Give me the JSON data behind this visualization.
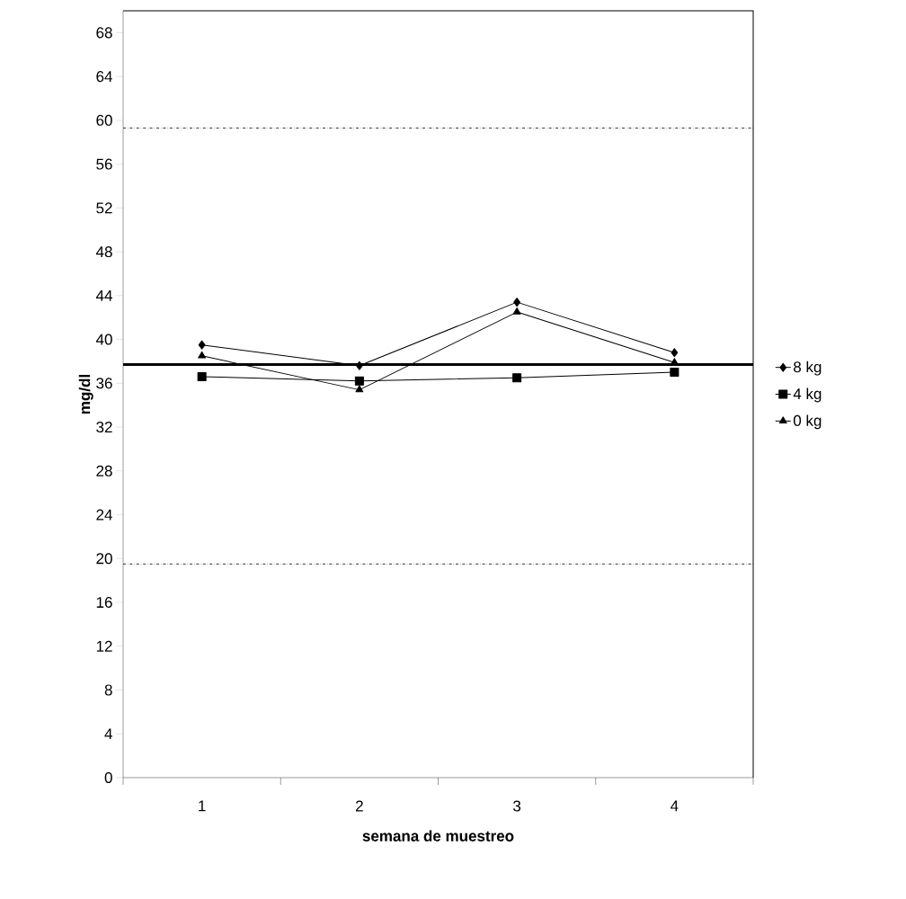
{
  "chart_data": {
    "type": "line",
    "xlabel": "semana de muestreo",
    "ylabel": "mg/dl",
    "categories": [
      "1",
      "2",
      "3",
      "4"
    ],
    "series": [
      {
        "name": "8 kg",
        "color": "#000000",
        "marker": "diamond",
        "values": [
          39.5,
          37.6,
          43.4,
          38.8
        ]
      },
      {
        "name": "4 kg",
        "color": "#000000",
        "marker": "square",
        "values": [
          36.6,
          36.2,
          36.5,
          37.0
        ]
      },
      {
        "name": "0 kg",
        "color": "#000000",
        "marker": "triangle",
        "values": [
          38.5,
          35.4,
          42.5,
          37.9
        ]
      }
    ],
    "ylim": [
      0,
      70
    ],
    "yticks": [
      0,
      4,
      8,
      12,
      16,
      20,
      24,
      28,
      32,
      36,
      40,
      44,
      48,
      52,
      56,
      60,
      64,
      68
    ],
    "ref_lines": [
      {
        "axis": "y",
        "value": 59.3,
        "line_style": "dashed",
        "color": "#000000"
      },
      {
        "axis": "y",
        "value": 37.7,
        "line_style": "solid",
        "color": "#000000"
      },
      {
        "axis": "y",
        "value": 19.5,
        "line_style": "dashed",
        "color": "#000000"
      }
    ],
    "grid": false,
    "legend": "right",
    "line_style": "solid"
  }
}
